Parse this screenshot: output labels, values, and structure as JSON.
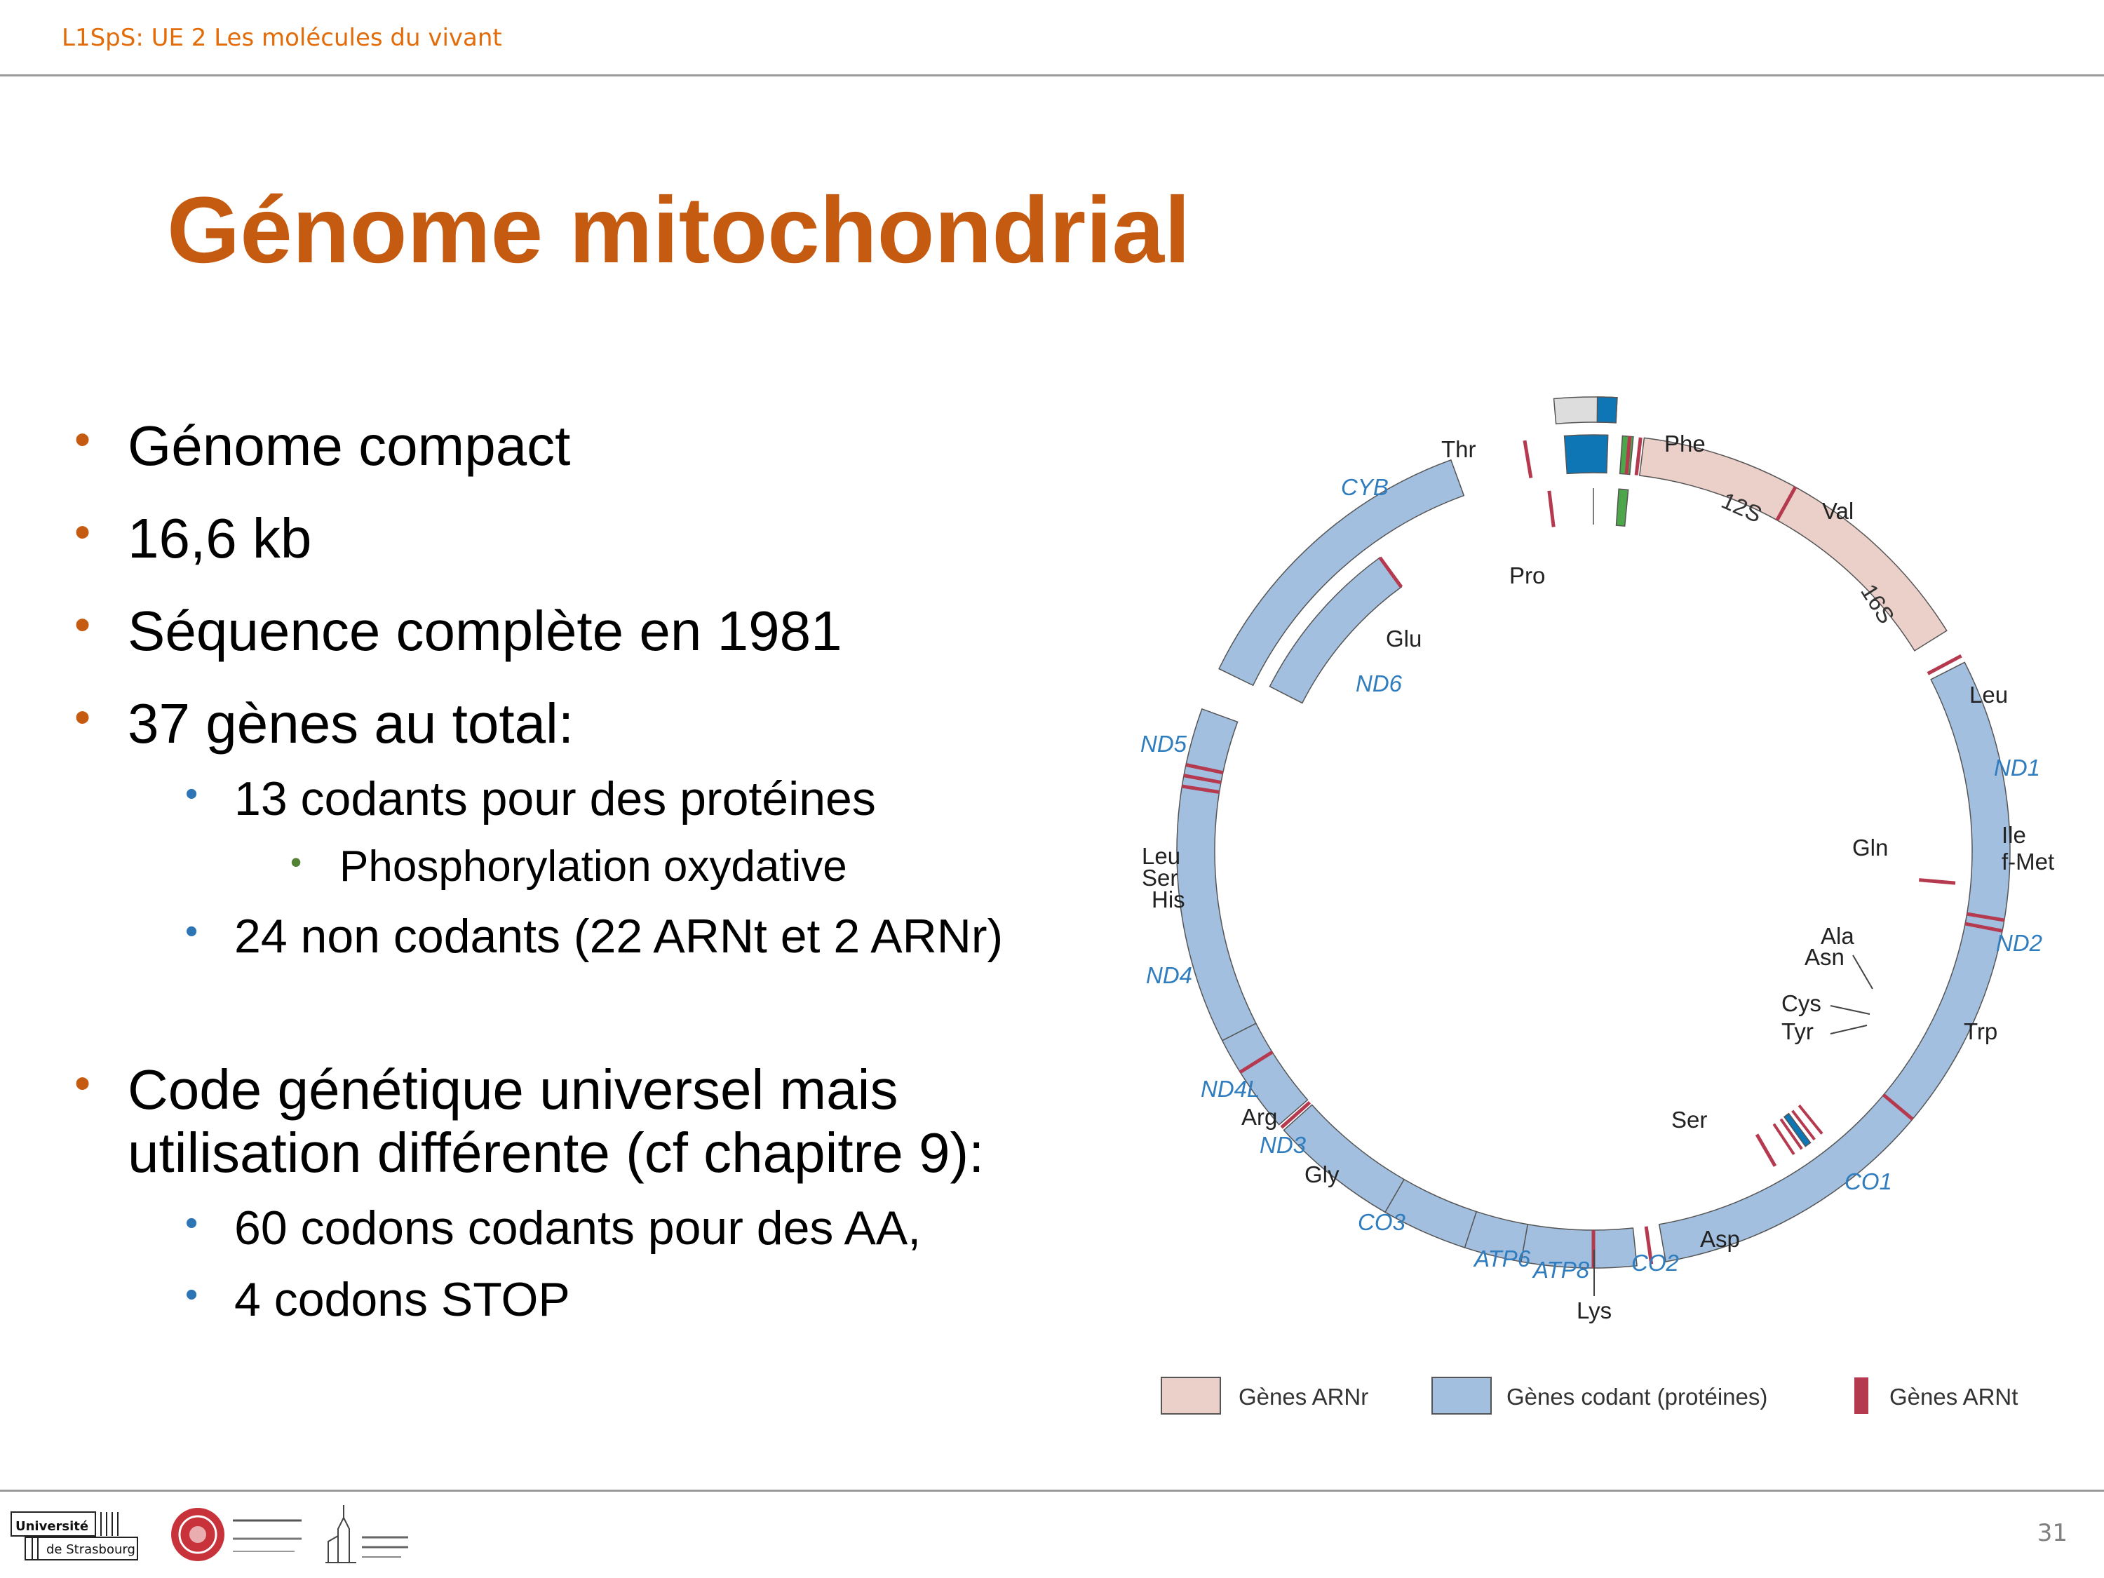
{
  "header": {
    "course": "L1SpS: UE 2 Les molécules du vivant"
  },
  "slide": {
    "title": "Génome mitochondrial",
    "page_number": "31"
  },
  "bullets": {
    "b1": "Génome compact",
    "b2": "16,6 kb",
    "b3": "Séquence complète en 1981",
    "b4": "37 gènes au total:",
    "b4_1": "13 codants pour des protéines",
    "b4_1_1": "Phosphorylation oxydative",
    "b4_2": "24 non codants (22 ARNt et 2 ARNr)",
    "b5_line1": "Code génétique universel mais",
    "b5_line2": "utilisation différente (cf chapitre 9):",
    "b5_1": "60 codons codants pour des AA,",
    "b5_2": "4 codons STOP"
  },
  "diagram": {
    "colors": {
      "rrna": "#EBCFC9",
      "coding": "#A3BFDF",
      "trna": "#B63A4F",
      "noncoding": "#DDDDDD",
      "dloop": "#0E76B5",
      "origin": "#4DA64A",
      "gene_label": "#2F7DBE"
    },
    "labels": {
      "thr": "Thr",
      "phe": "Phe",
      "cyb": "CYB",
      "s12": "12S",
      "val": "Val",
      "pro": "Pro",
      "s16": "16S",
      "glu": "Glu",
      "nd6": "ND6",
      "leu_r": "Leu",
      "nd5": "ND5",
      "nd1": "ND1",
      "leu_l": "Leu",
      "ser_l": "Ser",
      "his": "His",
      "gln": "Gln",
      "ile": "Ile",
      "fmet": "f-Met",
      "ala": "Ala",
      "asn": "Asn",
      "nd2": "ND2",
      "nd4": "ND4",
      "cys": "Cys",
      "tyr": "Tyr",
      "trp": "Trp",
      "nd4l": "ND4L",
      "arg": "Arg",
      "nd3": "ND3",
      "ser_r": "Ser",
      "gly": "Gly",
      "co1": "CO1",
      "co3": "CO3",
      "asp": "Asp",
      "atp6": "ATP6",
      "atp8": "ATP8",
      "co2": "CO2",
      "lys": "Lys"
    },
    "legend": {
      "rrna": "Gènes ARNr",
      "coding": "Gènes codant (protéines)",
      "trna": "Gènes ARNt"
    }
  },
  "logos": {
    "unistra_line1": "Université",
    "unistra_line2": "de Strasbourg"
  }
}
